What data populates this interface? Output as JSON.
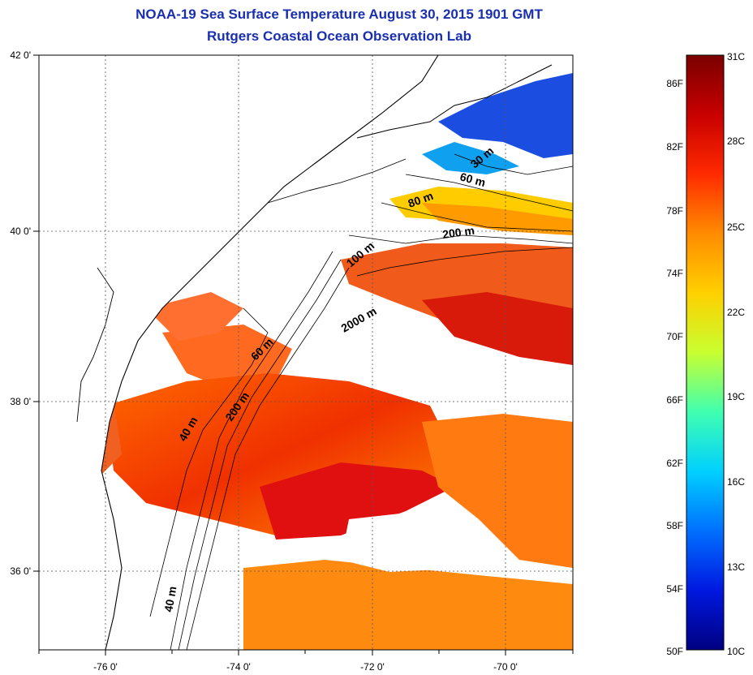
{
  "title": "NOAA-19 Sea Surface Temperature August 30, 2015 1901 GMT",
  "subtitle": "Rutgers Coastal Ocean Observation Lab",
  "map": {
    "lon_ticks": [
      "-76 0'",
      "-74 0'",
      "-72 0'",
      "-70 0'"
    ],
    "lat_ticks": [
      "42 0'",
      "40 0'",
      "38 0'",
      "36 0'"
    ],
    "contour_labels": [
      "30 m",
      "60 m",
      "80 m",
      "200 m",
      "100 m",
      "2000 m",
      "60 m",
      "200 m",
      "40 m",
      "40 m"
    ]
  },
  "colorbar": {
    "fahrenheit_labels": [
      "86F",
      "82F",
      "78F",
      "74F",
      "70F",
      "66F",
      "62F",
      "58F",
      "54F",
      "50F"
    ],
    "celsius_labels": [
      "31C",
      "28C",
      "25C",
      "22C",
      "19C",
      "16C",
      "13C",
      "10C"
    ],
    "colors": [
      "#7a0000",
      "#c80000",
      "#ff2a00",
      "#ff8c00",
      "#ffd000",
      "#c8ff30",
      "#40ffb0",
      "#00d0ff",
      "#0070ff",
      "#0018e0",
      "#000080"
    ]
  }
}
